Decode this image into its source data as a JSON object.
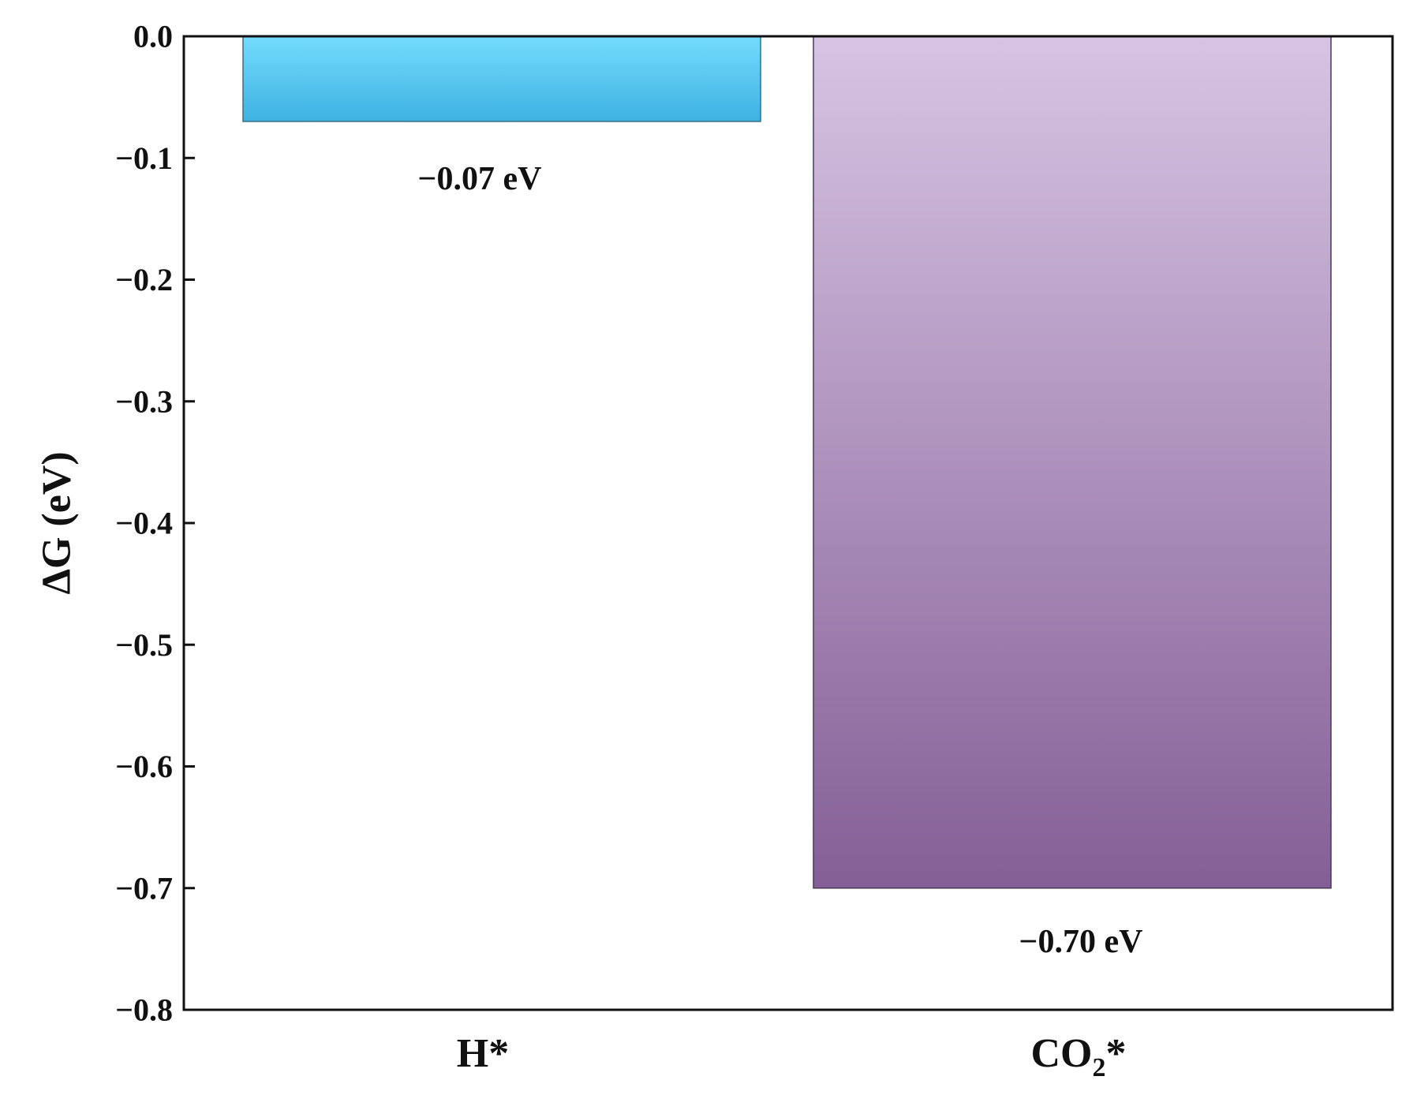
{
  "chart_data": {
    "type": "bar",
    "categories": [
      {
        "label": "H*",
        "label_main": "H*",
        "label_sub": "",
        "label_tail": ""
      },
      {
        "label": "CO2*",
        "label_main": "CO",
        "label_sub": "2",
        "label_tail": "*"
      }
    ],
    "values": [
      -0.07,
      -0.7
    ],
    "data_labels": [
      "−0.07 eV",
      "−0.70 eV"
    ],
    "title": "",
    "xlabel": "",
    "ylabel": "ΔG (eV)",
    "ylim": [
      -0.8,
      0.0
    ],
    "yticks": [
      0.0,
      -0.1,
      -0.2,
      -0.3,
      -0.4,
      -0.5,
      -0.6,
      -0.7,
      -0.8
    ],
    "ytick_labels": [
      "0.0",
      "−0.1",
      "−0.2",
      "−0.3",
      "−0.4",
      "−0.5",
      "−0.6",
      "−0.7",
      "−0.8"
    ],
    "grid": false,
    "legend": "none",
    "bar_colors": [
      {
        "top": "#74dcfd",
        "bottom": "#3eb2e2"
      },
      {
        "top": "#d7c4e3",
        "bottom": "#845f96"
      }
    ],
    "axis_color": "#111111"
  }
}
